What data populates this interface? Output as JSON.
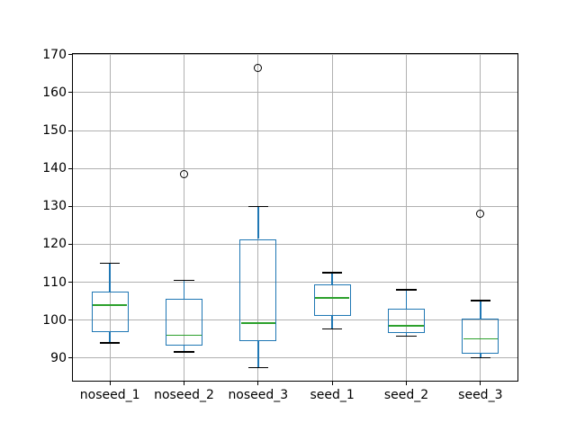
{
  "figure": {
    "background": "#ffffff"
  },
  "chart_data": {
    "type": "box",
    "title": "",
    "xlabel": "",
    "ylabel": "",
    "grid": true,
    "legend": false,
    "categories": [
      "noseed_1",
      "noseed_2",
      "noseed_3",
      "seed_1",
      "seed_2",
      "seed_3"
    ],
    "boxes": [
      {
        "label": "noseed_1",
        "whisker_low": 94.0,
        "q1": 96.8,
        "median": 104.0,
        "q3": 107.5,
        "whisker_high": 115.0,
        "outliers": []
      },
      {
        "label": "noseed_2",
        "whisker_low": 91.6,
        "q1": 93.3,
        "median": 96.0,
        "q3": 105.6,
        "whisker_high": 110.5,
        "outliers": [
          138.6
        ]
      },
      {
        "label": "noseed_3",
        "whisker_low": 87.4,
        "q1": 94.5,
        "median": 99.2,
        "q3": 121.4,
        "whisker_high": 130.0,
        "outliers": [
          166.6
        ]
      },
      {
        "label": "seed_1",
        "whisker_low": 97.7,
        "q1": 101.0,
        "median": 105.8,
        "q3": 109.5,
        "whisker_high": 112.5,
        "outliers": []
      },
      {
        "label": "seed_2",
        "whisker_low": 95.8,
        "q1": 96.6,
        "median": 98.5,
        "q3": 103.0,
        "whisker_high": 108.0,
        "outliers": []
      },
      {
        "label": "seed_3",
        "whisker_low": 90.0,
        "q1": 91.2,
        "median": 95.0,
        "q3": 100.4,
        "whisker_high": 105.1,
        "outliers": [
          128.0
        ]
      }
    ],
    "yticks": [
      90,
      100,
      110,
      120,
      130,
      140,
      150,
      160,
      170
    ],
    "ylim": [
      84.0,
      170.2
    ],
    "colors": {
      "box": "#1f77b4",
      "whisker": "#1f77b4",
      "median": "#2ca02c",
      "cap": "#000000",
      "flier": "#000000",
      "grid": "#b0b0b0",
      "spine": "#000000",
      "tick_label": "#000000",
      "background": "#ffffff"
    }
  }
}
